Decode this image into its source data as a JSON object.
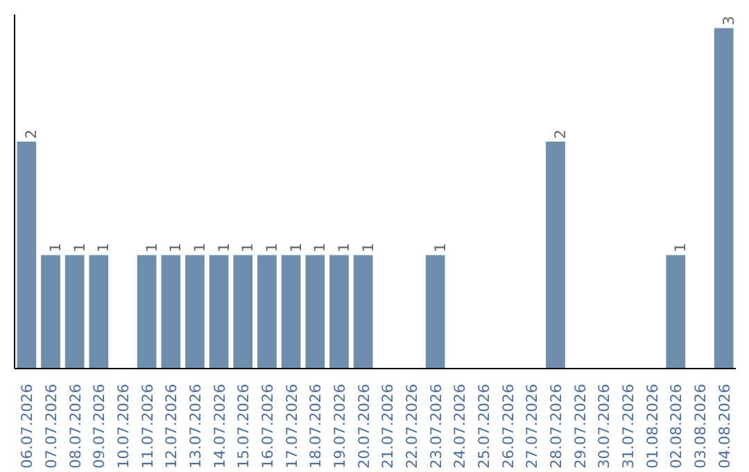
{
  "chart_data": {
    "type": "bar",
    "categories": [
      "06.07.2026",
      "07.07.2026",
      "08.07.2026",
      "09.07.2026",
      "10.07.2026",
      "11.07.2026",
      "12.07.2026",
      "13.07.2026",
      "14.07.2026",
      "15.07.2026",
      "16.07.2026",
      "17.07.2026",
      "18.07.2026",
      "19.07.2026",
      "20.07.2026",
      "21.07.2026",
      "22.07.2026",
      "23.07.2026",
      "24.07.2026",
      "25.07.2026",
      "26.07.2026",
      "27.07.2026",
      "28.07.2026",
      "29.07.2026",
      "30.07.2026",
      "31.07.2026",
      "01.08.2026",
      "02.08.2026",
      "03.08.2026",
      "04.08.2026"
    ],
    "values": [
      2,
      1,
      1,
      1,
      0,
      1,
      1,
      1,
      1,
      1,
      1,
      1,
      1,
      1,
      1,
      0,
      0,
      1,
      0,
      0,
      0,
      0,
      2,
      0,
      0,
      0,
      0,
      1,
      0,
      3
    ],
    "value_labels": [
      "2",
      "1",
      "1",
      "1",
      null,
      "1",
      "1",
      "1",
      "1",
      "1",
      "1",
      "1",
      "1",
      "1",
      "1",
      null,
      null,
      "1",
      null,
      null,
      null,
      null,
      "2",
      null,
      null,
      null,
      null,
      "1",
      null,
      "3"
    ],
    "color": "#6f8ead",
    "grid": false,
    "tick_labels": "x"
  }
}
